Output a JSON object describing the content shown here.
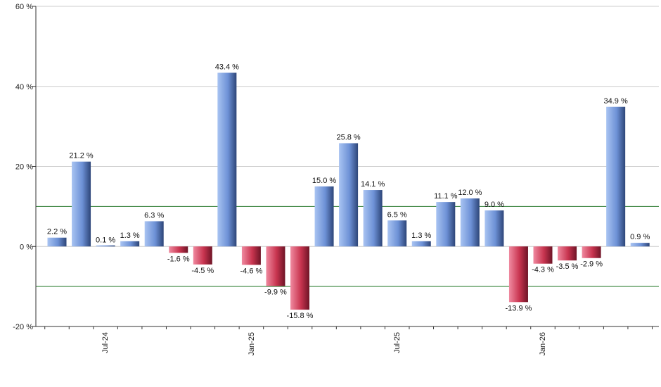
{
  "chart_data": {
    "type": "bar",
    "x_ticks": [
      "Jul-24",
      "Jan-25",
      "Jul-25",
      "Jan-26"
    ],
    "values": [
      2.2,
      21.2,
      0.1,
      1.3,
      6.3,
      -1.6,
      -4.5,
      43.4,
      -4.6,
      -9.9,
      -15.8,
      15.0,
      25.8,
      14.1,
      6.5,
      1.3,
      11.1,
      12.0,
      9.0,
      -13.9,
      -4.3,
      -3.5,
      -2.9,
      34.9,
      0.9
    ],
    "labels": [
      "2.2 %",
      "21.2 %",
      "0.1 %",
      "1.3 %",
      "6.3 %",
      "-1.6 %",
      "-4.5 %",
      "43.4 %",
      "-4.6 %",
      "-9.9 %",
      "-15.8 %",
      "15.0 %",
      "25.8 %",
      "14.1 %",
      "6.5 %",
      "1.3 %",
      "11.1 %",
      "12.0 %",
      "9.0 %",
      "-13.9 %",
      "-4.3 %",
      "-3.5 %",
      "-2.9 %",
      "34.9 %",
      "0.9 %"
    ],
    "y_ticks": [
      "60 %",
      "40 %",
      "20 %",
      "0 %",
      "-20 %"
    ],
    "y_tick_values": [
      60,
      40,
      20,
      0,
      -20
    ],
    "ylim": [
      -20,
      60
    ],
    "reference_lines": [
      10,
      -10
    ],
    "colors": {
      "positive": "#6f93d6",
      "negative": "#c8344f",
      "grid": "#cccccc",
      "reference": "#2e7d32"
    },
    "grid": true
  }
}
